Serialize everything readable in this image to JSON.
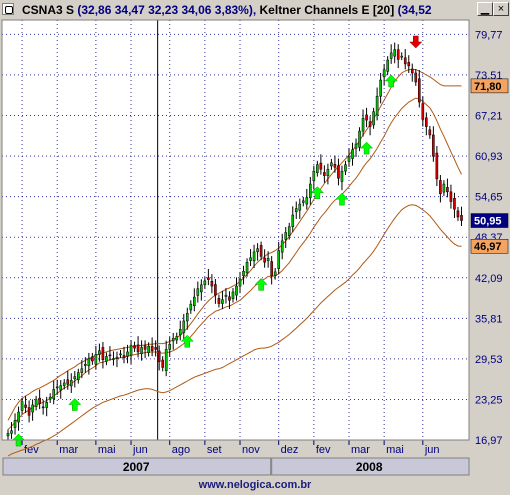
{
  "window": {
    "title_symbol": "CSNA3 S",
    "title_ohlc": "(32,86  34,47  32,23  34,06  3,83%),",
    "title_indicator": "Keltner Channels E [20]",
    "title_indicator_values": "(34,52"
  },
  "footer": {
    "url": "www.nelogica.com.br"
  },
  "colors": {
    "up_candle": "#00c000",
    "down_candle": "#d00000",
    "channel_line": "#b05a14",
    "buy_arrow": "#00ff00",
    "sell_arrow": "#e00000",
    "grid": "#000080",
    "price_badge_current": "#000080",
    "price_badge_upper": "#c04000",
    "price_badge_lower": "#c04000"
  },
  "chart_data": {
    "type": "candlestick",
    "y_ticks": [
      "79,77",
      "73,51",
      "67,21",
      "60,93",
      "54,65",
      "48,37",
      "42,09",
      "35,81",
      "29,53",
      "23,25",
      "16,97"
    ],
    "ylim": [
      16.97,
      82.0
    ],
    "x_months": [
      "fev",
      "mar",
      "mai",
      "jun",
      "ago",
      "set",
      "nov",
      "dez",
      "fev",
      "mar",
      "mai",
      "jun"
    ],
    "years": [
      "2007",
      "2008"
    ],
    "price_badges": {
      "upper": "71,80",
      "current": "50,95",
      "lower": "46,97"
    },
    "markers": {
      "buy_index": [
        3,
        19,
        51,
        72,
        88,
        95,
        102,
        109
      ],
      "sell_index": [
        116
      ]
    },
    "candles_close": [
      18.0,
      18.4,
      20.0,
      21.3,
      22.9,
      22.0,
      20.8,
      22.4,
      23.2,
      22.6,
      22.0,
      22.8,
      23.6,
      24.8,
      25.2,
      25.4,
      25.8,
      25.6,
      26.2,
      26.8,
      27.4,
      28.0,
      28.7,
      29.6,
      29.2,
      30.2,
      30.8,
      29.4,
      29.9,
      30.1,
      29.6,
      29.8,
      30.3,
      29.7,
      30.6,
      31.6,
      31.2,
      30.6,
      31.3,
      31.0,
      31.5,
      30.8,
      31.0,
      29.1,
      28.2,
      31.0,
      31.8,
      32.7,
      33.0,
      34.1,
      35.4,
      36.6,
      38.0,
      39.1,
      40.4,
      41.0,
      41.6,
      41.8,
      40.8,
      39.4,
      38.1,
      38.7,
      39.4,
      38.6,
      39.9,
      40.8,
      41.9,
      43.1,
      44.5,
      45.2,
      46.1,
      46.6,
      45.4,
      44.5,
      45.1,
      42.4,
      43.0,
      46.3,
      47.8,
      49.1,
      50.0,
      51.8,
      52.8,
      53.5,
      54.0,
      54.5,
      56.6,
      58.6,
      59.6,
      58.9,
      57.9,
      58.9,
      59.9,
      59.2,
      57.5,
      58.6,
      59.6,
      60.8,
      61.9,
      62.8,
      64.8,
      66.8,
      66.5,
      65.5,
      67.8,
      70.2,
      72.7,
      74.3,
      75.8,
      76.9,
      77.4,
      75.9,
      76.4,
      75.2,
      74.9,
      73.8,
      72.4,
      69.3,
      66.6,
      65.5,
      64.2,
      60.9,
      57.4,
      55.1,
      56.6,
      55.4,
      53.9,
      52.7,
      51.5,
      50.95
    ],
    "keltner_upper": [
      20.0,
      21.0,
      22.0,
      22.8,
      23.4,
      23.8,
      24.1,
      24.5,
      24.8,
      25.0,
      25.3,
      25.6,
      25.9,
      26.2,
      26.6,
      27.0,
      27.3,
      27.7,
      28.0,
      28.3,
      28.7,
      29.0,
      29.3,
      29.6,
      29.8,
      30.1,
      30.3,
      30.5,
      30.6,
      30.8,
      30.9,
      31.0,
      31.1,
      31.2,
      31.3,
      31.4,
      31.5,
      31.6,
      31.6,
      31.7,
      31.8,
      31.8,
      31.9,
      31.9,
      31.9,
      32.0,
      32.2,
      32.5,
      32.8,
      33.2,
      33.7,
      34.3,
      35.0,
      35.7,
      36.5,
      37.2,
      37.9,
      38.5,
      39.0,
      39.4,
      39.7,
      40.0,
      40.3,
      40.5,
      40.8,
      41.1,
      41.5,
      42.0,
      42.6,
      43.2,
      43.9,
      44.5,
      45.0,
      45.4,
      45.8,
      46.0,
      46.3,
      46.7,
      47.2,
      47.8,
      48.5,
      49.2,
      50.0,
      50.8,
      51.6,
      52.4,
      53.3,
      54.2,
      55.1,
      55.9,
      56.7,
      57.4,
      58.1,
      58.7,
      59.3,
      59.9,
      60.5,
      61.1,
      61.8,
      62.5,
      63.3,
      64.2,
      65.0,
      65.8,
      66.7,
      67.6,
      68.6,
      69.6,
      70.6,
      71.6,
      72.5,
      73.2,
      73.8,
      74.1,
      74.3,
      74.4,
      74.3,
      74.1,
      73.8,
      73.5,
      73.2,
      72.8,
      72.4,
      72.0,
      71.8,
      71.8,
      71.8,
      71.8,
      71.8,
      71.8
    ],
    "keltner_middle": [
      18.6,
      19.1,
      19.7,
      20.3,
      20.9,
      21.3,
      21.6,
      22.0,
      22.4,
      22.6,
      22.8,
      23.1,
      23.4,
      23.8,
      24.2,
      24.6,
      25.0,
      25.3,
      25.7,
      26.1,
      26.5,
      26.9,
      27.4,
      27.8,
      28.1,
      28.5,
      28.9,
      29.0,
      29.2,
      29.4,
      29.5,
      29.6,
      29.7,
      29.8,
      29.9,
      30.1,
      30.2,
      30.3,
      30.4,
      30.5,
      30.6,
      30.6,
      30.6,
      30.5,
      30.4,
      30.5,
      30.6,
      30.8,
      31.1,
      31.5,
      31.9,
      32.4,
      33.0,
      33.6,
      34.3,
      34.9,
      35.5,
      36.1,
      36.5,
      36.9,
      37.1,
      37.3,
      37.6,
      37.7,
      38.0,
      38.3,
      38.6,
      39.1,
      39.6,
      40.1,
      40.7,
      41.2,
      41.6,
      41.9,
      42.3,
      42.3,
      42.4,
      42.7,
      43.2,
      43.8,
      44.4,
      45.2,
      46.0,
      46.8,
      47.5,
      48.2,
      49.0,
      49.9,
      50.7,
      51.5,
      52.1,
      52.8,
      53.5,
      54.1,
      54.5,
      55.0,
      55.6,
      56.2,
      56.9,
      57.5,
      58.3,
      59.2,
      59.9,
      60.5,
      61.3,
      62.1,
      63.1,
      64.0,
      65.1,
      66.1,
      66.9,
      67.6,
      68.3,
      68.8,
      69.3,
      69.6,
      69.9,
      69.8,
      69.4,
      68.9,
      68.4,
      67.5,
      66.4,
      65.1,
      64.0,
      62.8,
      61.6,
      60.4,
      59.2,
      58.1
    ],
    "keltner_lower": [
      14.5,
      14.8,
      15.0,
      15.2,
      15.4,
      15.6,
      15.8,
      16.0,
      16.3,
      16.5,
      16.8,
      17.0,
      17.3,
      17.6,
      17.9,
      18.3,
      18.7,
      19.1,
      19.5,
      19.9,
      20.3,
      20.7,
      21.1,
      21.5,
      21.9,
      22.2,
      22.5,
      22.8,
      23.0,
      23.2,
      23.4,
      23.6,
      23.8,
      23.9,
      24.1,
      24.3,
      24.5,
      24.7,
      24.8,
      24.9,
      24.9,
      24.8,
      24.6,
      24.4,
      24.3,
      24.4,
      24.6,
      24.9,
      25.2,
      25.5,
      25.8,
      26.1,
      26.4,
      26.7,
      26.9,
      27.1,
      27.3,
      27.5,
      27.7,
      27.9,
      28.0,
      28.2,
      28.5,
      28.8,
      29.1,
      29.4,
      29.7,
      30.0,
      30.3,
      30.6,
      30.9,
      31.1,
      31.2,
      31.2,
      31.3,
      31.5,
      31.8,
      32.1,
      32.5,
      32.9,
      33.3,
      33.8,
      34.3,
      34.8,
      35.3,
      35.8,
      36.4,
      37.0,
      37.6,
      38.2,
      38.7,
      39.2,
      39.7,
      40.2,
      40.6,
      41.0,
      41.4,
      41.9,
      42.5,
      43.0,
      43.6,
      44.3,
      44.9,
      45.5,
      46.2,
      47.0,
      47.9,
      48.8,
      49.7,
      50.5,
      51.3,
      52.0,
      52.6,
      53.0,
      53.3,
      53.4,
      53.3,
      53.0,
      52.6,
      52.2,
      51.7,
      51.0,
      50.3,
      49.6,
      49.0,
      48.4,
      47.8,
      47.3,
      47.0,
      46.97
    ]
  }
}
